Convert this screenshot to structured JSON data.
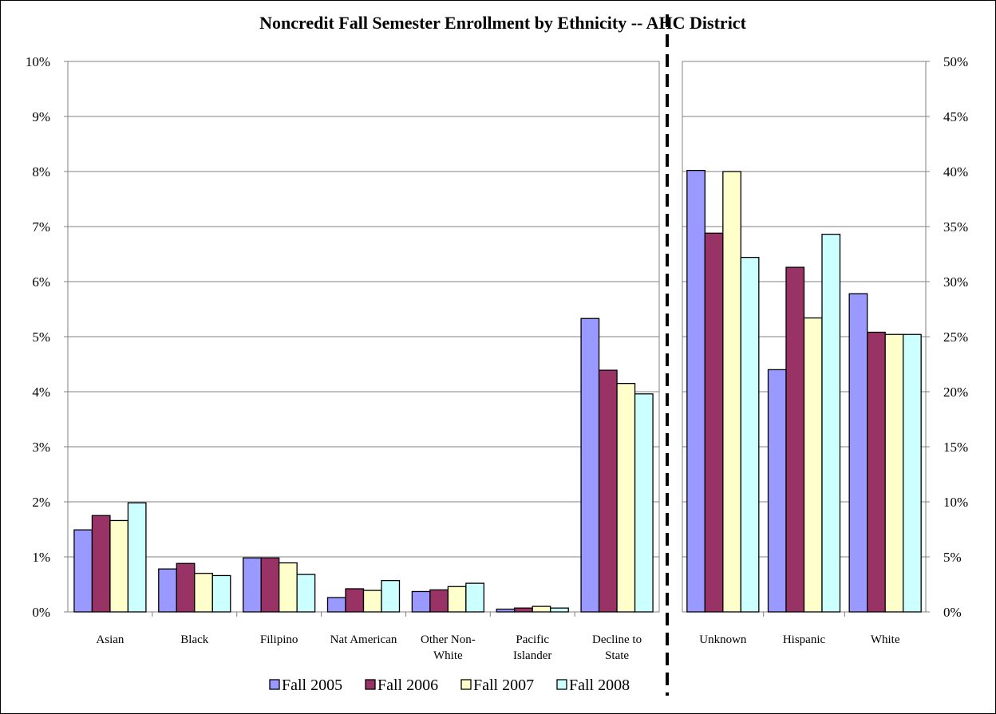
{
  "chart_data": {
    "type": "bar",
    "title": "Noncredit Fall Semester Enrollment by Ethnicity -- AHC District",
    "series": [
      {
        "name": "Fall 2005",
        "color": "#9999ff"
      },
      {
        "name": "Fall 2006",
        "color": "#993366"
      },
      {
        "name": "Fall 2007",
        "color": "#ffffcc"
      },
      {
        "name": "Fall 2008",
        "color": "#ccffff"
      }
    ],
    "panels": [
      {
        "axis": "left",
        "ylim": [
          0,
          10
        ],
        "ticks": [
          "0%",
          "1%",
          "2%",
          "3%",
          "4%",
          "5%",
          "6%",
          "7%",
          "8%",
          "9%",
          "10%"
        ],
        "categories": [
          {
            "label": [
              "Asian"
            ],
            "values": [
              1.49,
              1.75,
              1.66,
              1.98
            ]
          },
          {
            "label": [
              "Black"
            ],
            "values": [
              0.78,
              0.88,
              0.7,
              0.66
            ]
          },
          {
            "label": [
              "Filipino"
            ],
            "values": [
              0.98,
              0.98,
              0.89,
              0.68
            ]
          },
          {
            "label": [
              "Nat American"
            ],
            "values": [
              0.26,
              0.42,
              0.39,
              0.57
            ]
          },
          {
            "label": [
              "Other Non-",
              "White"
            ],
            "values": [
              0.37,
              0.4,
              0.46,
              0.52
            ]
          },
          {
            "label": [
              "Pacific",
              "Islander"
            ],
            "values": [
              0.05,
              0.07,
              0.1,
              0.07
            ]
          },
          {
            "label": [
              "Decline to",
              "State"
            ],
            "values": [
              5.33,
              4.39,
              4.15,
              3.96
            ]
          }
        ]
      },
      {
        "axis": "right",
        "ylim": [
          0,
          50
        ],
        "ticks": [
          "0%",
          "5%",
          "10%",
          "15%",
          "20%",
          "25%",
          "30%",
          "35%",
          "40%",
          "45%",
          "50%"
        ],
        "categories": [
          {
            "label": [
              "Unknown"
            ],
            "values": [
              40.1,
              34.4,
              40.0,
              32.2
            ]
          },
          {
            "label": [
              "Hispanic"
            ],
            "values": [
              22.0,
              31.3,
              26.7,
              34.3
            ]
          },
          {
            "label": [
              "White"
            ],
            "values": [
              28.9,
              25.4,
              25.2,
              25.2
            ]
          }
        ]
      }
    ],
    "legend_position": "bottom",
    "gridlines": true
  }
}
